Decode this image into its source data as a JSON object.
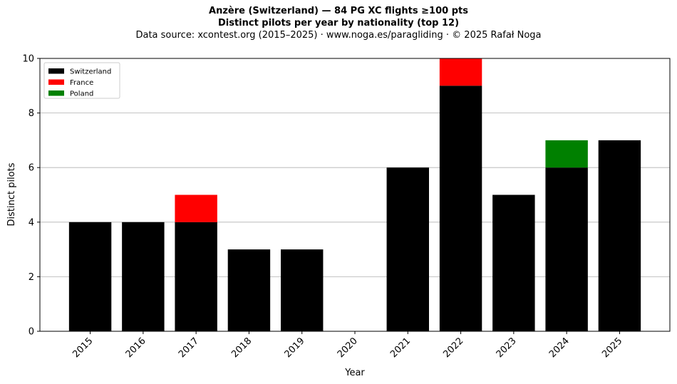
{
  "figure": {
    "title_line1": "Anzère (Switzerland)  —  84 PG XC flights ≥100 pts",
    "title_line2": "Distinct pilots per year by nationality (top 12)",
    "subtitle": "Data source: xcontest.org (2015–2025)  ·  www.noga.es/paragliding  ·  © 2025 Rafał Noga"
  },
  "chart_data": {
    "type": "bar",
    "stacked": true,
    "categories": [
      "2015",
      "2016",
      "2017",
      "2018",
      "2019",
      "2020",
      "2021",
      "2022",
      "2023",
      "2024",
      "2025"
    ],
    "series": [
      {
        "name": "Switzerland",
        "color": "#000000",
        "values": [
          4,
          4,
          4,
          3,
          3,
          0,
          6,
          9,
          5,
          6,
          7
        ]
      },
      {
        "name": "France",
        "color": "#ff0000",
        "values": [
          0,
          0,
          1,
          0,
          0,
          0,
          0,
          1,
          0,
          0,
          0
        ]
      },
      {
        "name": "Poland",
        "color": "#008000",
        "values": [
          0,
          0,
          0,
          0,
          0,
          0,
          0,
          0,
          0,
          1,
          0
        ]
      }
    ],
    "xlabel": "Year",
    "ylabel": "Distinct pilots",
    "ylim": [
      0,
      10
    ],
    "yticks": [
      0,
      2,
      4,
      6,
      8,
      10
    ],
    "grid": "y",
    "legend_position": "upper-left"
  }
}
